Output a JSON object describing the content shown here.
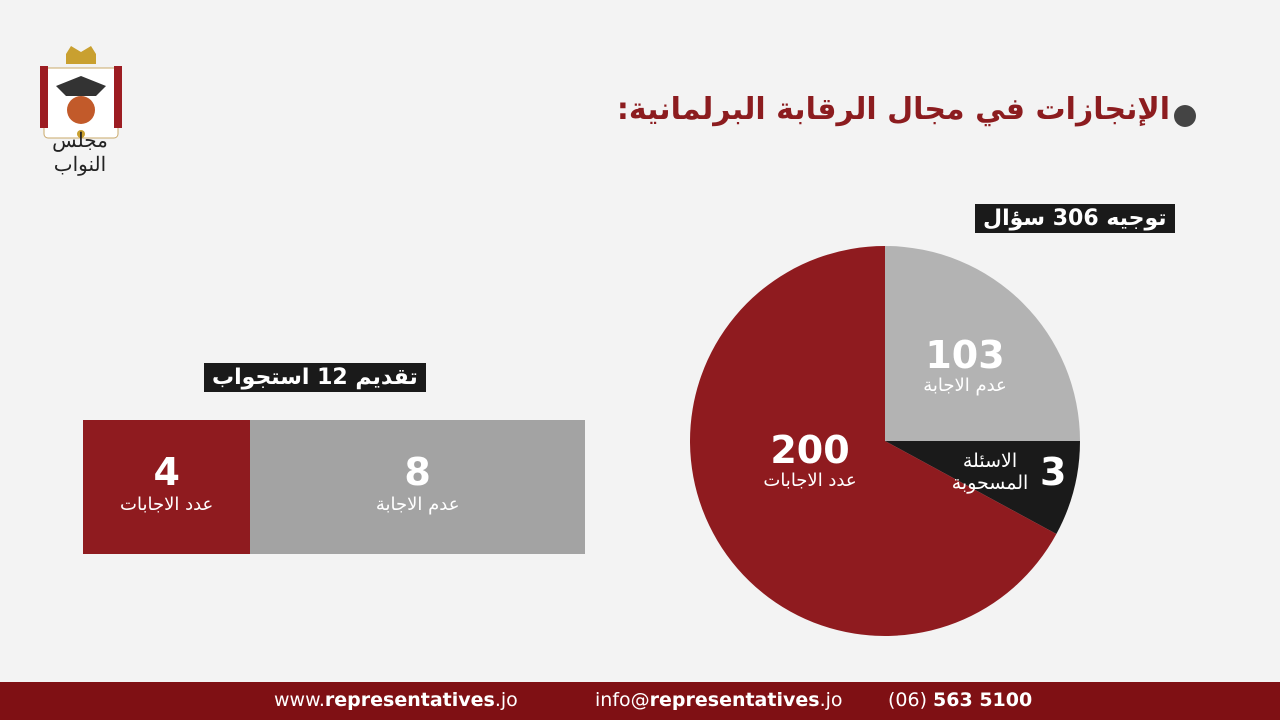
{
  "header": {
    "title": "الإنجازات في مجال الرقابة البرلمانية:",
    "logo_text": "مجلس النواب"
  },
  "chart_data": [
    {
      "type": "pie",
      "title": "توجيه 306 سؤال",
      "total": 306,
      "slices": [
        {
          "label": "عدم الاجابة",
          "value": 103,
          "color": "#b3b3b3"
        },
        {
          "label": "الاسئلة المسحوبة",
          "value": 3,
          "color": "#1a1a1a"
        },
        {
          "label": "عدد الاجابات",
          "value": 200,
          "color": "#8f1b1f"
        }
      ]
    },
    {
      "type": "bar",
      "title": "تقديم 12 استجواب",
      "total": 12,
      "segments": [
        {
          "label": "عدد الاجابات",
          "value": 4,
          "color": "#8f1b1f"
        },
        {
          "label": "عدم الاجابة",
          "value": 8,
          "color": "#a3a3a3"
        }
      ]
    }
  ],
  "footer": {
    "web_prefix": "www.",
    "web_bold": "representatives",
    "web_suffix": ".jo",
    "email_prefix": "info@",
    "email_bold": "representatives",
    "email_suffix": ".jo",
    "phone_prefix": "(06) ",
    "phone_bold": "563 5100"
  }
}
